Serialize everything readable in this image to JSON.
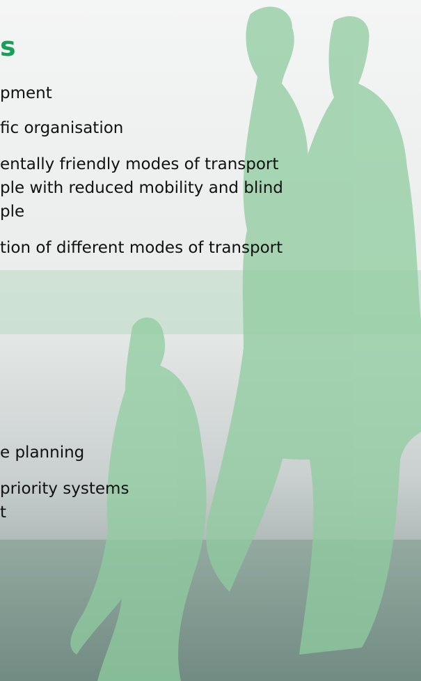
{
  "title": "s",
  "section1": [
    "pment",
    "fic organisation",
    "entally friendly modes of transport",
    "ple with reduced mobility and blind",
    "ple",
    "tion of different modes of transport"
  ],
  "section2": [
    "e planning",
    "priority systems",
    "t"
  ]
}
